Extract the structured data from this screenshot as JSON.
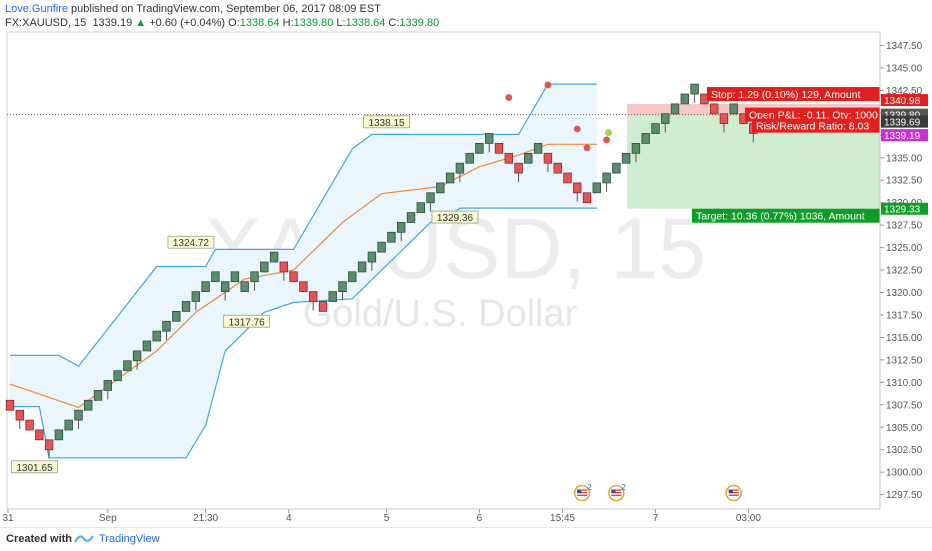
{
  "header": {
    "author": "Love.Gunfire",
    "published": " published on TradingView.com, September 06, 2017 08:09 EST",
    "symbol": "FX:XAUUSD, 15",
    "last": "1339.19",
    "change_arrow": "▲",
    "change": "+0.60 (+0.04%)",
    "o_label": "O:",
    "o_value": "1338.64",
    "h_label": "H:",
    "h_value": "1339.80",
    "l_label": "L:",
    "l_value": "1338.64",
    "c_label": "C:",
    "c_value": "1339.80"
  },
  "footer": {
    "created_with": "Created with",
    "brand": "TradingView"
  },
  "colors": {
    "brick": "#5b8c6e",
    "brick_edge": "#2f4e3b",
    "reversal": "#e05555",
    "channel": "#3fa9dd",
    "channel_fill": "#eaf5fc",
    "midline": "#ef8a3a",
    "stop_zone": "#f7c6c6",
    "target_zone": "#cfeccf",
    "stop_label": "#e0201f",
    "target_label": "#0e9e28",
    "price_box": "#555555",
    "last_price": "#cc2ed4"
  },
  "chart_data": {
    "type": "renko",
    "watermark_symbol": "XAUUSD, 15",
    "watermark_name": "Gold/U.S. Dollar",
    "ylim": [
      1295.9,
      1349.0
    ],
    "y_ticks": [
      1347.5,
      1345.0,
      1342.5,
      1340.0,
      1337.5,
      1335.0,
      1332.5,
      1330.0,
      1327.5,
      1325.0,
      1322.5,
      1320.0,
      1317.5,
      1315.0,
      1312.5,
      1310.0,
      1307.5,
      1305.0,
      1302.5,
      1300.0,
      1297.5
    ],
    "x_ticks": [
      {
        "label": "31",
        "idx": -1
      },
      {
        "label": "Sep",
        "idx": 10
      },
      {
        "label": "21:30",
        "idx": 20
      },
      {
        "label": "4",
        "idx": 28.5
      },
      {
        "label": "5",
        "idx": 38.5
      },
      {
        "label": "6",
        "idx": 48
      },
      {
        "label": "15:45",
        "idx": 56.5
      },
      {
        "label": "7",
        "idx": 66
      },
      {
        "label": "03:00",
        "idx": 75.5
      }
    ],
    "bricks": [
      {
        "lo": 1306.9,
        "up": false
      },
      {
        "lo": 1305.8,
        "up": false
      },
      {
        "lo": 1304.7,
        "up": false
      },
      {
        "lo": 1303.6,
        "up": false
      },
      {
        "lo": 1302.5,
        "up": false
      },
      {
        "lo": 1303.6,
        "up": true
      },
      {
        "lo": 1304.7,
        "up": true
      },
      {
        "lo": 1305.8,
        "up": true
      },
      {
        "lo": 1306.9,
        "up": true
      },
      {
        "lo": 1308.0,
        "up": true
      },
      {
        "lo": 1309.1,
        "up": true
      },
      {
        "lo": 1310.2,
        "up": true
      },
      {
        "lo": 1311.3,
        "up": true
      },
      {
        "lo": 1312.4,
        "up": true
      },
      {
        "lo": 1313.5,
        "up": true
      },
      {
        "lo": 1314.6,
        "up": true
      },
      {
        "lo": 1315.7,
        "up": true
      },
      {
        "lo": 1316.8,
        "up": true
      },
      {
        "lo": 1317.9,
        "up": true
      },
      {
        "lo": 1319.0,
        "up": true
      },
      {
        "lo": 1320.1,
        "up": true
      },
      {
        "lo": 1321.2,
        "up": true
      },
      {
        "lo": 1320.1,
        "up": true
      },
      {
        "lo": 1321.2,
        "up": true
      },
      {
        "lo": 1320.1,
        "up": true
      },
      {
        "lo": 1321.2,
        "up": true
      },
      {
        "lo": 1322.3,
        "up": true
      },
      {
        "lo": 1323.4,
        "up": true
      },
      {
        "lo": 1322.3,
        "up": false
      },
      {
        "lo": 1321.2,
        "up": false
      },
      {
        "lo": 1320.1,
        "up": false
      },
      {
        "lo": 1319.0,
        "up": false
      },
      {
        "lo": 1317.9,
        "up": false
      },
      {
        "lo": 1319.0,
        "up": true
      },
      {
        "lo": 1320.1,
        "up": true
      },
      {
        "lo": 1321.2,
        "up": true
      },
      {
        "lo": 1322.3,
        "up": true
      },
      {
        "lo": 1323.4,
        "up": true
      },
      {
        "lo": 1324.5,
        "up": true
      },
      {
        "lo": 1325.6,
        "up": true
      },
      {
        "lo": 1326.7,
        "up": true
      },
      {
        "lo": 1327.8,
        "up": true
      },
      {
        "lo": 1328.9,
        "up": true
      },
      {
        "lo": 1330.0,
        "up": true
      },
      {
        "lo": 1331.1,
        "up": true
      },
      {
        "lo": 1332.2,
        "up": true
      },
      {
        "lo": 1333.3,
        "up": true
      },
      {
        "lo": 1334.4,
        "up": true
      },
      {
        "lo": 1335.5,
        "up": true
      },
      {
        "lo": 1336.6,
        "up": true
      },
      {
        "lo": 1335.5,
        "up": false
      },
      {
        "lo": 1334.4,
        "up": false
      },
      {
        "lo": 1333.3,
        "up": false
      },
      {
        "lo": 1334.4,
        "up": true
      },
      {
        "lo": 1335.5,
        "up": true
      },
      {
        "lo": 1334.4,
        "up": false
      },
      {
        "lo": 1333.3,
        "up": false
      },
      {
        "lo": 1332.2,
        "up": false
      },
      {
        "lo": 1331.1,
        "up": false
      },
      {
        "lo": 1330.0,
        "up": false
      },
      {
        "lo": 1331.1,
        "up": true
      },
      {
        "lo": 1332.2,
        "up": true
      },
      {
        "lo": 1333.3,
        "up": true
      },
      {
        "lo": 1334.4,
        "up": true
      },
      {
        "lo": 1335.5,
        "up": true
      },
      {
        "lo": 1336.6,
        "up": true
      },
      {
        "lo": 1337.7,
        "up": true
      },
      {
        "lo": 1338.8,
        "up": true
      },
      {
        "lo": 1339.9,
        "up": true
      },
      {
        "lo": 1341.0,
        "up": true
      },
      {
        "lo": 1342.1,
        "up": true
      },
      {
        "lo": 1341.0,
        "up": false
      },
      {
        "lo": 1339.9,
        "up": false
      },
      {
        "lo": 1338.8,
        "up": false
      },
      {
        "lo": 1339.9,
        "up": true
      },
      {
        "lo": 1338.8,
        "up": false
      },
      {
        "lo": 1337.7,
        "up": false
      },
      {
        "lo": 1338.8,
        "up": true
      }
    ],
    "reversal_dots": [
      {
        "idx": 51,
        "price": 1341.7
      },
      {
        "idx": 55,
        "price": 1343.1
      },
      {
        "idx": 58,
        "price": 1338.2
      },
      {
        "idx": 61,
        "price": 1337.0
      },
      {
        "idx": 59,
        "price": 1336.1
      }
    ],
    "channel_upper": [
      [
        0,
        1313.0
      ],
      [
        5,
        1313.0
      ],
      [
        7,
        1311.8
      ],
      [
        15,
        1322.9
      ],
      [
        20,
        1322.9
      ],
      [
        21,
        1324.8
      ],
      [
        29,
        1324.8
      ],
      [
        35,
        1336.0
      ],
      [
        37,
        1337.6
      ],
      [
        52,
        1337.6
      ],
      [
        55,
        1343.2
      ],
      [
        60,
        1343.2
      ]
    ],
    "channel_lower": [
      [
        0,
        1307.3
      ],
      [
        3,
        1307.3
      ],
      [
        4,
        1301.6
      ],
      [
        18,
        1301.6
      ],
      [
        20,
        1305.2
      ],
      [
        22,
        1313.5
      ],
      [
        26,
        1317.8
      ],
      [
        29,
        1318.9
      ],
      [
        35,
        1319.3
      ],
      [
        43,
        1327.8
      ],
      [
        45,
        1328.6
      ],
      [
        46,
        1329.4
      ],
      [
        60,
        1329.4
      ]
    ],
    "midline": [
      [
        0,
        1309.8
      ],
      [
        7,
        1307.2
      ],
      [
        15,
        1313.5
      ],
      [
        19,
        1317.8
      ],
      [
        24,
        1321.5
      ],
      [
        29,
        1322.5
      ],
      [
        34,
        1327.8
      ],
      [
        38,
        1331.0
      ],
      [
        44,
        1331.8
      ],
      [
        48,
        1334.0
      ],
      [
        52,
        1335.3
      ],
      [
        55,
        1336.5
      ],
      [
        60,
        1336.5
      ]
    ],
    "price_labels": [
      {
        "text": "1301.65",
        "idx": 2.5,
        "price": 1300.6
      },
      {
        "text": "1324.72",
        "idx": 18.5,
        "price": 1325.6
      },
      {
        "text": "1317.76",
        "idx": 24.2,
        "price": 1316.8
      },
      {
        "text": "1338.15",
        "idx": 38.5,
        "price": 1339.0
      },
      {
        "text": "1329.36",
        "idx": 45.5,
        "price": 1328.4
      }
    ],
    "position": {
      "entry": 1339.69,
      "stop": 1340.98,
      "target": 1329.33,
      "stop_text": "Stop: 1.29 (0.10%) 129, Amount",
      "pnl_text": "Open P&L: -0.11, Qty: 1000",
      "rr_text": "Risk/Reward Ratio: 8.03",
      "target_text": "Target: 10.36 (0.77%) 1036, Amount"
    },
    "axis_badges": [
      {
        "text": "1340.98",
        "price": 1340.98,
        "kind": "stop"
      },
      {
        "text": "1339.80",
        "price": 1339.8,
        "kind": "box"
      },
      {
        "text": "1339.69",
        "price": 1339.69,
        "kind": "dark"
      },
      {
        "text": "1339.19",
        "price": 1339.19,
        "kind": "last"
      },
      {
        "text": "1329.33",
        "price": 1329.33,
        "kind": "target"
      }
    ],
    "event_icons": [
      {
        "idx": 58.5,
        "badge": "2"
      },
      {
        "idx": 62,
        "badge": "2"
      },
      {
        "idx": 74,
        "badge": ""
      }
    ]
  }
}
